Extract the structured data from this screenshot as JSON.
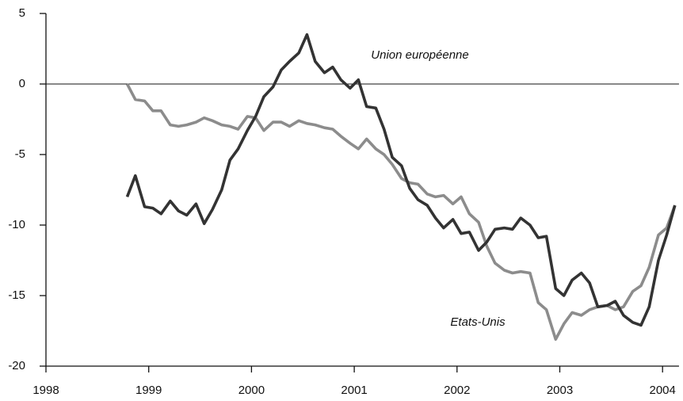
{
  "chart_data": {
    "type": "line",
    "annotations": [
      {
        "text": "Union européenne"
      },
      {
        "text": "Etats-Unis"
      }
    ],
    "x": [
      1998.79,
      1998.87,
      1998.96,
      1999.04,
      1999.12,
      1999.21,
      1999.29,
      1999.37,
      1999.46,
      1999.54,
      1999.62,
      1999.71,
      1999.79,
      1999.87,
      1999.96,
      2000.04,
      2000.12,
      2000.21,
      2000.29,
      2000.37,
      2000.46,
      2000.54,
      2000.62,
      2000.71,
      2000.79,
      2000.87,
      2000.96,
      2001.04,
      2001.12,
      2001.21,
      2001.29,
      2001.37,
      2001.46,
      2001.54,
      2001.62,
      2001.71,
      2001.79,
      2001.87,
      2001.96,
      2002.04,
      2002.12,
      2002.21,
      2002.29,
      2002.37,
      2002.46,
      2002.54,
      2002.62,
      2002.71,
      2002.79,
      2002.87,
      2002.96,
      2003.04,
      2003.12,
      2003.21,
      2003.29,
      2003.37,
      2003.46,
      2003.54,
      2003.62,
      2003.71,
      2003.79,
      2003.87,
      2003.96,
      2004.04,
      2004.12
    ],
    "series": [
      {
        "name": "Union européenne",
        "color": "#333333",
        "values": [
          -8.0,
          -6.5,
          -8.7,
          -8.8,
          -9.2,
          -8.3,
          -9.0,
          -9.3,
          -8.5,
          -9.9,
          -8.9,
          -7.5,
          -5.4,
          -4.6,
          -3.3,
          -2.3,
          -0.9,
          -0.2,
          1.0,
          1.6,
          2.2,
          3.5,
          1.6,
          0.8,
          1.2,
          0.3,
          -0.3,
          0.3,
          -1.6,
          -1.7,
          -3.2,
          -5.2,
          -5.8,
          -7.4,
          -8.2,
          -8.6,
          -9.5,
          -10.2,
          -9.6,
          -10.6,
          -10.5,
          -11.8,
          -11.2,
          -10.3,
          -10.2,
          -10.3,
          -9.5,
          -10.0,
          -10.9,
          -10.8,
          -14.5,
          -15.0,
          -13.9,
          -13.4,
          -14.1,
          -15.8,
          -15.7,
          -15.4,
          -16.4,
          -16.9,
          -17.1,
          -15.8,
          -12.5,
          -10.7,
          -8.6
        ]
      },
      {
        "name": "Etats-Unis",
        "color": "#8c8c8c",
        "values": [
          0.0,
          -1.1,
          -1.2,
          -1.9,
          -1.9,
          -2.9,
          -3.0,
          -2.9,
          -2.7,
          -2.4,
          -2.6,
          -2.9,
          -3.0,
          -3.2,
          -2.3,
          -2.4,
          -3.3,
          -2.7,
          -2.7,
          -3.0,
          -2.6,
          -2.8,
          -2.9,
          -3.1,
          -3.2,
          -3.7,
          -4.2,
          -4.6,
          -3.9,
          -4.6,
          -5.0,
          -5.7,
          -6.7,
          -7.0,
          -7.1,
          -7.8,
          -8.0,
          -7.9,
          -8.5,
          -8.0,
          -9.2,
          -9.8,
          -11.5,
          -12.7,
          -13.2,
          -13.4,
          -13.3,
          -13.4,
          -15.5,
          -16.0,
          -18.1,
          -17.0,
          -16.2,
          -16.4,
          -16.0,
          -15.8,
          -15.7,
          -16.0,
          -15.8,
          -14.7,
          -14.3,
          -13.0,
          -10.7,
          -10.2,
          -8.6
        ]
      }
    ],
    "xlim": [
      1998,
      2004.16
    ],
    "xticks": [
      1998,
      1999,
      2000,
      2001,
      2002,
      2003,
      2004
    ],
    "ylim": [
      -20,
      5
    ],
    "yticks": [
      -20,
      -15,
      -10,
      -5,
      0,
      5
    ]
  }
}
